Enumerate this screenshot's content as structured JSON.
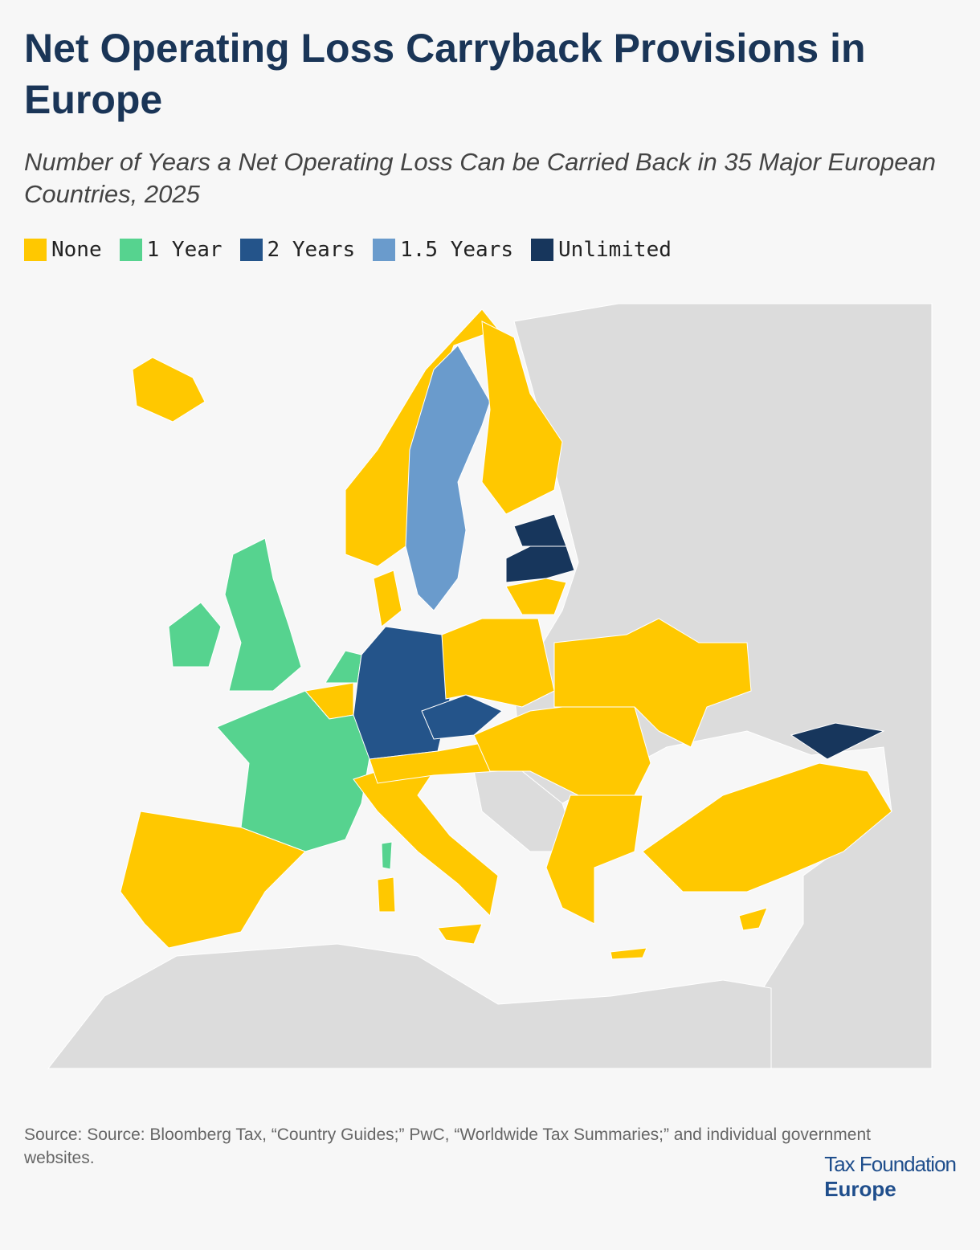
{
  "header": {
    "title": "Net Operating Loss Carryback Provisions in Europe",
    "subtitle": "Number of Years a Net Operating Loss Can be Carried Back in 35 Major European Countries, 2025"
  },
  "legend": {
    "items": [
      {
        "label": "None",
        "color": "#ffc800"
      },
      {
        "label": "1 Year",
        "color": "#56d38f"
      },
      {
        "label": "2 Years",
        "color": "#24548a"
      },
      {
        "label": "1.5 Years",
        "color": "#6a9bcc"
      },
      {
        "label": "Unlimited",
        "color": "#17365c"
      }
    ]
  },
  "footer": {
    "source": "Source: Source: Bloomberg Tax, “Country Guides;” PwC, “Worldwide Tax Summaries;” and individual government websites.",
    "logo_line1": "Tax Foundation",
    "logo_line2": "Europe"
  }
}
